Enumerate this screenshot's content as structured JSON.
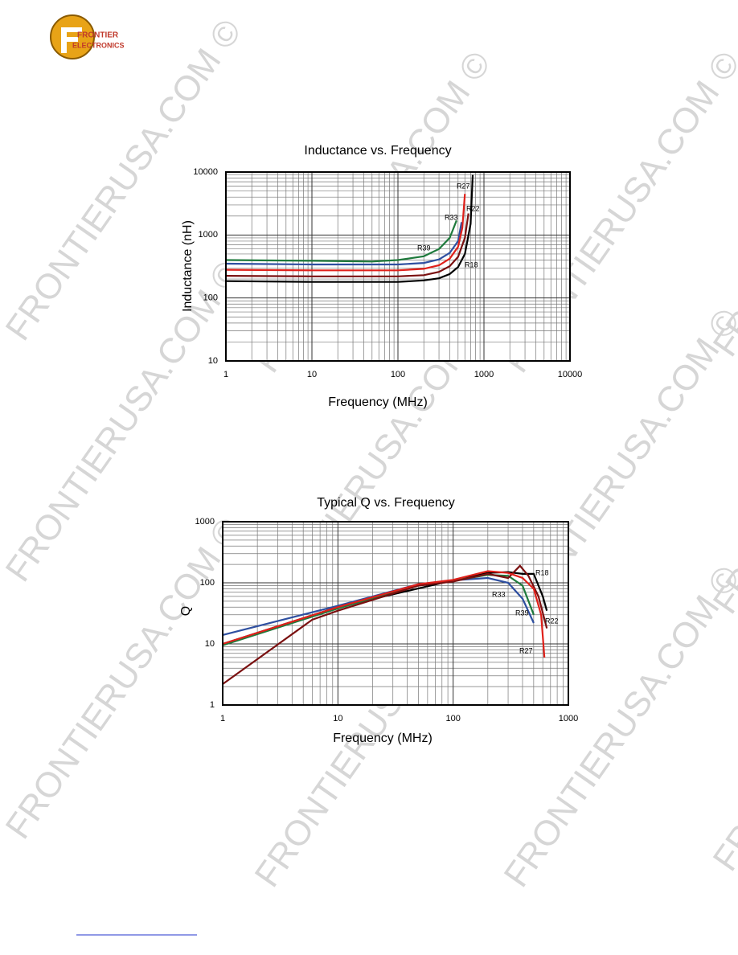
{
  "watermark": "FRONTIERUSA.COM ©",
  "logo": {
    "line1": "FRONTIER",
    "line2": "ELECTRONICS"
  },
  "chart_data": [
    {
      "type": "line",
      "title": "Inductance vs. Frequency",
      "x_label": "Frequency (MHz)",
      "y_label": "Inductance (nH)",
      "log_x": true,
      "log_y": true,
      "grid": true,
      "xlim": [
        1,
        10000
      ],
      "ylim": [
        10,
        10000
      ],
      "xticks": [
        1,
        10,
        100,
        1000,
        10000
      ],
      "yticks": [
        10,
        100,
        1000,
        10000
      ],
      "minor_xticks": [
        2,
        3,
        4,
        5,
        6,
        7,
        8,
        9,
        20,
        30,
        40,
        50,
        60,
        70,
        80,
        90,
        200,
        300,
        400,
        500,
        600,
        700,
        800,
        900,
        2000,
        3000,
        4000,
        5000,
        6000,
        7000,
        8000,
        9000
      ],
      "minor_yticks": [
        20,
        30,
        40,
        50,
        60,
        70,
        80,
        90,
        200,
        300,
        400,
        500,
        600,
        700,
        800,
        900,
        2000,
        3000,
        4000,
        5000,
        6000,
        7000,
        8000,
        9000
      ],
      "series": [
        {
          "name": "R39",
          "color": "#1e7a3c",
          "x": [
            1,
            10,
            50,
            100,
            200,
            300,
            400,
            480
          ],
          "values": [
            400,
            390,
            380,
            400,
            460,
            600,
            900,
            1700
          ]
        },
        {
          "name": "R33",
          "color": "#2e4fa0",
          "x": [
            1,
            10,
            100,
            200,
            300,
            400,
            500,
            550
          ],
          "values": [
            350,
            340,
            340,
            360,
            410,
            520,
            800,
            1600
          ]
        },
        {
          "name": "R27",
          "color": "#e0201a",
          "x": [
            1,
            10,
            100,
            200,
            300,
            400,
            500,
            560,
            600
          ],
          "values": [
            280,
            275,
            275,
            290,
            330,
            420,
            650,
            1300,
            4500
          ]
        },
        {
          "name": "R22",
          "color": "#7a1010",
          "x": [
            1,
            10,
            100,
            200,
            300,
            400,
            500,
            600,
            660
          ],
          "values": [
            225,
            220,
            220,
            230,
            260,
            320,
            450,
            900,
            2200
          ]
        },
        {
          "name": "R18",
          "color": "#000000",
          "x": [
            1,
            10,
            100,
            200,
            300,
            400,
            500,
            600,
            700,
            740
          ],
          "values": [
            185,
            180,
            180,
            190,
            205,
            240,
            310,
            500,
            1500,
            9000
          ]
        }
      ]
    },
    {
      "type": "line",
      "title": "Typical Q vs. Frequency",
      "x_label": "Frequency (MHz)",
      "y_label": "Q",
      "log_x": true,
      "log_y": true,
      "grid": true,
      "xlim": [
        1,
        1000
      ],
      "ylim": [
        1,
        1000
      ],
      "xticks": [
        1,
        10,
        100,
        1000
      ],
      "yticks": [
        1,
        10,
        100,
        1000
      ],
      "minor_xticks": [
        2,
        3,
        4,
        5,
        6,
        7,
        8,
        9,
        20,
        30,
        40,
        50,
        60,
        70,
        80,
        90,
        200,
        300,
        400,
        500,
        600,
        700,
        800,
        900
      ],
      "minor_yticks": [
        2,
        3,
        4,
        5,
        6,
        7,
        8,
        9,
        20,
        30,
        40,
        50,
        60,
        70,
        80,
        90,
        200,
        300,
        400,
        500,
        600,
        700,
        800,
        900
      ],
      "series": [
        {
          "name": "R18",
          "color": "#000000",
          "x": [
            1,
            10,
            100,
            200,
            300,
            400,
            500,
            600,
            650
          ],
          "values": [
            10,
            40,
            110,
            145,
            150,
            140,
            140,
            60,
            35
          ]
        },
        {
          "name": "R33",
          "color": "#2e4fa0",
          "x": [
            1,
            10,
            50,
            100,
            200,
            300,
            400,
            500
          ],
          "values": [
            14,
            42,
            95,
            110,
            120,
            100,
            55,
            22
          ]
        },
        {
          "name": "R39",
          "color": "#1e7a3c",
          "x": [
            1,
            10,
            50,
            100,
            200,
            300,
            400,
            500
          ],
          "values": [
            9.5,
            38,
            92,
            108,
            135,
            130,
            90,
            30
          ]
        },
        {
          "name": "R22",
          "color": "#7a1010",
          "x": [
            1,
            6,
            10,
            50,
            100,
            200,
            300,
            380,
            450,
            550,
            650
          ],
          "values": [
            2.2,
            25,
            35,
            90,
            105,
            140,
            120,
            190,
            130,
            60,
            18
          ]
        },
        {
          "name": "R27",
          "color": "#e0201a",
          "x": [
            1,
            10,
            50,
            100,
            200,
            300,
            400,
            500,
            580,
            620
          ],
          "values": [
            10,
            40,
            95,
            112,
            155,
            145,
            120,
            80,
            30,
            6
          ]
        }
      ]
    }
  ]
}
